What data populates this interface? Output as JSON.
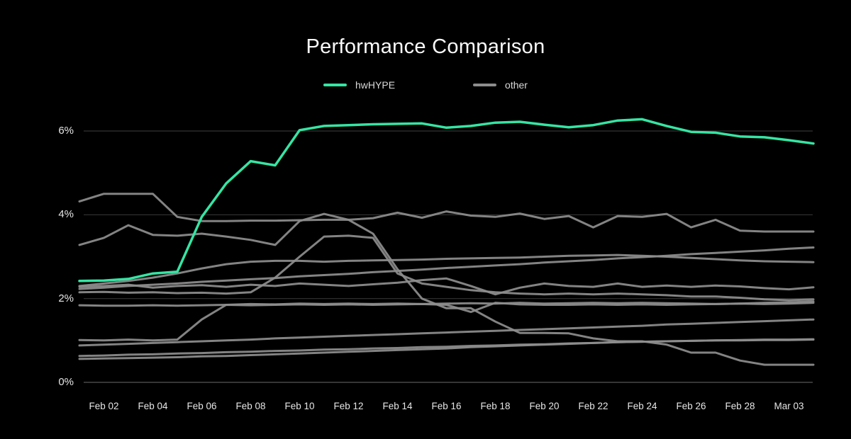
{
  "title": "Performance Comparison",
  "legend": {
    "items": [
      {
        "label": "hwHYPE",
        "color": "#35e5a3"
      },
      {
        "label": "other",
        "color": "#8d8d8d"
      }
    ]
  },
  "colors": {
    "background": "#000000",
    "grid": "#343434",
    "grid_zero": "#565656",
    "accent": "#35e5a3",
    "muted": "#8e8e8e",
    "text": "#e6e6e6"
  },
  "chart_data": {
    "type": "line",
    "title": "Performance Comparison",
    "xlabel": "",
    "ylabel": "",
    "grid": "horizontal",
    "legend_position": "top-center",
    "ylim": [
      0,
      6.6
    ],
    "y_ticks": [
      {
        "label": "0%",
        "value": 0
      },
      {
        "label": "2%",
        "value": 2
      },
      {
        "label": "4%",
        "value": 4
      },
      {
        "label": "6%",
        "value": 6
      }
    ],
    "x_tick_labels": [
      "Feb 02",
      "Feb 04",
      "Feb 06",
      "Feb 08",
      "Feb 10",
      "Feb 12",
      "Feb 14",
      "Feb 16",
      "Feb 18",
      "Feb 20",
      "Feb 22",
      "Feb 24",
      "Feb 26",
      "Feb 28",
      "Mar 03"
    ],
    "x_tick_day_indices": [
      1,
      3,
      5,
      7,
      9,
      11,
      13,
      15,
      17,
      19,
      21,
      23,
      25,
      27,
      29
    ],
    "days_span": 31,
    "unit": "percent",
    "series": [
      {
        "name": "hwHYPE",
        "accent": true,
        "color": "#35e5a3",
        "values": [
          2.42,
          2.43,
          2.47,
          2.6,
          2.64,
          3.95,
          4.75,
          5.28,
          5.18,
          6.02,
          6.12,
          6.14,
          6.16,
          6.17,
          6.18,
          6.08,
          6.12,
          6.2,
          6.22,
          6.15,
          6.09,
          6.14,
          6.25,
          6.28,
          6.12,
          5.98,
          5.96,
          5.87,
          5.85,
          5.78,
          5.7
        ]
      },
      {
        "name": "other-1",
        "accent": false,
        "color": "#8e8e8e",
        "values": [
          4.32,
          4.5,
          4.5,
          4.5,
          3.95,
          3.85,
          3.85,
          3.86,
          3.86,
          3.87,
          3.88,
          3.88,
          3.55,
          2.7,
          2.0,
          1.77,
          1.77,
          1.45,
          1.18,
          1.18,
          1.17,
          1.05,
          0.98,
          0.98,
          0.9,
          0.71,
          0.71,
          0.52,
          0.42,
          0.42,
          0.42
        ]
      },
      {
        "name": "other-2",
        "accent": false,
        "color": "#8e8e8e",
        "values": [
          3.28,
          3.45,
          3.75,
          3.52,
          3.5,
          3.55,
          3.48,
          3.4,
          3.28,
          3.85,
          4.02,
          3.88,
          3.92,
          4.05,
          3.93,
          4.08,
          3.98,
          3.95,
          4.03,
          3.9,
          3.97,
          3.7,
          3.97,
          3.95,
          4.02,
          3.7,
          3.88,
          3.62,
          3.6,
          3.6,
          3.6
        ]
      },
      {
        "name": "other-3",
        "accent": false,
        "color": "#8e8e8e",
        "values": [
          2.23,
          2.26,
          2.3,
          2.33,
          2.36,
          2.4,
          2.43,
          2.46,
          2.49,
          2.53,
          2.56,
          2.59,
          2.63,
          2.66,
          2.69,
          2.73,
          2.76,
          2.79,
          2.82,
          2.86,
          2.89,
          2.92,
          2.96,
          2.99,
          3.02,
          3.06,
          3.09,
          3.12,
          3.15,
          3.19,
          3.22
        ]
      },
      {
        "name": "other-4",
        "accent": false,
        "color": "#8e8e8e",
        "values": [
          2.3,
          2.36,
          2.42,
          2.5,
          2.6,
          2.72,
          2.82,
          2.88,
          2.9,
          2.9,
          2.88,
          2.9,
          2.91,
          2.92,
          2.93,
          2.95,
          2.96,
          2.97,
          2.98,
          3.0,
          3.02,
          3.03,
          3.04,
          3.02,
          3.0,
          2.97,
          2.94,
          2.91,
          2.89,
          2.88,
          2.87
        ]
      },
      {
        "name": "other-5",
        "accent": false,
        "color": "#8e8e8e",
        "values": [
          2.28,
          2.3,
          2.33,
          2.26,
          2.3,
          2.32,
          2.28,
          2.33,
          2.3,
          2.36,
          2.33,
          2.3,
          2.34,
          2.38,
          2.44,
          2.48,
          2.3,
          2.1,
          2.26,
          2.36,
          2.3,
          2.28,
          2.36,
          2.28,
          2.31,
          2.28,
          2.31,
          2.29,
          2.25,
          2.22,
          2.27
        ]
      },
      {
        "name": "other-6",
        "accent": false,
        "color": "#8e8e8e",
        "values": [
          2.15,
          2.16,
          2.14,
          2.15,
          2.13,
          2.14,
          2.12,
          2.15,
          2.5,
          3.0,
          3.48,
          3.5,
          3.45,
          2.6,
          2.36,
          2.28,
          2.2,
          2.15,
          2.12,
          2.1,
          2.12,
          2.1,
          2.12,
          2.1,
          2.08,
          2.05,
          2.05,
          2.02,
          1.98,
          1.96,
          1.98
        ]
      },
      {
        "name": "other-7",
        "accent": false,
        "color": "#8e8e8e",
        "values": [
          1.84,
          1.83,
          1.83,
          1.84,
          1.83,
          1.84,
          1.85,
          1.84,
          1.85,
          1.86,
          1.85,
          1.86,
          1.85,
          1.86,
          1.87,
          1.85,
          1.68,
          1.9,
          1.86,
          1.85,
          1.85,
          1.86,
          1.85,
          1.86,
          1.85,
          1.86,
          1.87,
          1.88,
          1.9,
          1.91,
          1.93
        ]
      },
      {
        "name": "other-8",
        "accent": false,
        "color": "#8e8e8e",
        "values": [
          1.01,
          1.0,
          1.02,
          1.0,
          1.02,
          1.5,
          1.85,
          1.87,
          1.86,
          1.88,
          1.87,
          1.88,
          1.87,
          1.88,
          1.87,
          1.88,
          1.89,
          1.88,
          1.9,
          1.88,
          1.89,
          1.9,
          1.89,
          1.9,
          1.89,
          1.88,
          1.87,
          1.88,
          1.87,
          1.88,
          1.9
        ]
      },
      {
        "name": "other-9",
        "accent": false,
        "color": "#8e8e8e",
        "values": [
          0.88,
          0.9,
          0.92,
          0.94,
          0.96,
          0.98,
          1.0,
          1.02,
          1.05,
          1.07,
          1.09,
          1.11,
          1.13,
          1.15,
          1.17,
          1.19,
          1.21,
          1.23,
          1.25,
          1.27,
          1.29,
          1.31,
          1.33,
          1.35,
          1.38,
          1.4,
          1.42,
          1.44,
          1.46,
          1.48,
          1.5
        ]
      },
      {
        "name": "other-10",
        "accent": false,
        "color": "#8e8e8e",
        "values": [
          0.63,
          0.64,
          0.66,
          0.67,
          0.69,
          0.7,
          0.72,
          0.73,
          0.75,
          0.76,
          0.78,
          0.79,
          0.81,
          0.82,
          0.84,
          0.85,
          0.87,
          0.88,
          0.9,
          0.91,
          0.93,
          0.94,
          0.96,
          0.97,
          0.98,
          0.99,
          1.0,
          1.01,
          1.02,
          1.02,
          1.03
        ]
      },
      {
        "name": "other-11",
        "accent": false,
        "color": "#8e8e8e",
        "values": [
          0.56,
          0.57,
          0.58,
          0.59,
          0.6,
          0.62,
          0.63,
          0.65,
          0.67,
          0.69,
          0.71,
          0.73,
          0.75,
          0.77,
          0.79,
          0.81,
          0.84,
          0.86,
          0.88,
          0.9,
          0.92,
          0.94,
          0.96,
          0.97,
          0.98,
          0.99,
          1.0,
          1.0,
          1.01,
          1.01,
          1.02
        ]
      }
    ]
  }
}
